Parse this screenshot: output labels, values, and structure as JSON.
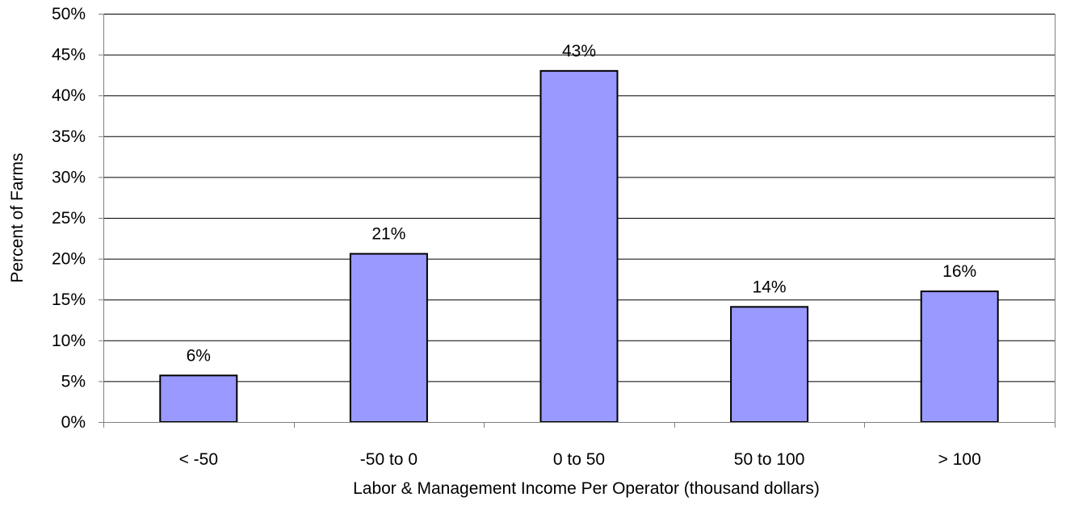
{
  "chart_data": {
    "type": "bar",
    "title": "",
    "categories": [
      "< -50",
      "-50 to 0",
      "0 to 50",
      "50 to 100",
      "> 100"
    ],
    "values": [
      5.7,
      20.6,
      43.0,
      14.1,
      16.0
    ],
    "data_labels": [
      "6%",
      "21%",
      "43%",
      "14%",
      "16%"
    ],
    "xlabel": "Labor & Management Income Per Operator (thousand dollars)",
    "ylabel": "Percent of Farms",
    "ylim": [
      0,
      50
    ],
    "y_ticks": [
      0,
      5,
      10,
      15,
      20,
      25,
      30,
      35,
      40,
      45,
      50
    ],
    "y_tick_labels": [
      "0%",
      "5%",
      "10%",
      "15%",
      "20%",
      "25%",
      "30%",
      "35%",
      "40%",
      "45%",
      "50%"
    ],
    "grid": true,
    "legend": "none",
    "colors": {
      "bar_fill": "#9999ff",
      "bar_stroke": "#000000",
      "grid": "#000000",
      "axis": "#808080",
      "plot_border": "#808080"
    }
  }
}
